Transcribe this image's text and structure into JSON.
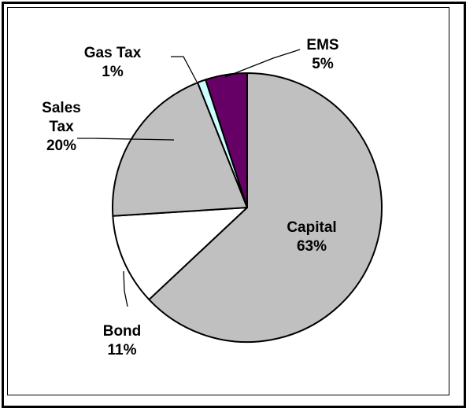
{
  "chart_data": {
    "type": "pie",
    "title": "",
    "legend": "none",
    "slices": [
      {
        "label": "Capital",
        "value": 63,
        "pct_text": "63%",
        "color": "#c0c0c0",
        "label_lines": [
          "Capital"
        ]
      },
      {
        "label": "Bond",
        "value": 11,
        "pct_text": "11%",
        "color": "#ffffff",
        "label_lines": [
          "Bond"
        ]
      },
      {
        "label": "Sales Tax",
        "value": 20,
        "pct_text": "20%",
        "color": "#c0c0c0",
        "label_lines": [
          "Sales",
          "Tax"
        ]
      },
      {
        "label": "Gas Tax",
        "value": 1,
        "pct_text": "1%",
        "color": "#ccffff",
        "label_lines": [
          "Gas Tax"
        ]
      },
      {
        "label": "EMS",
        "value": 5,
        "pct_text": "5%",
        "color": "#660066",
        "label_lines": [
          "EMS"
        ]
      }
    ]
  }
}
